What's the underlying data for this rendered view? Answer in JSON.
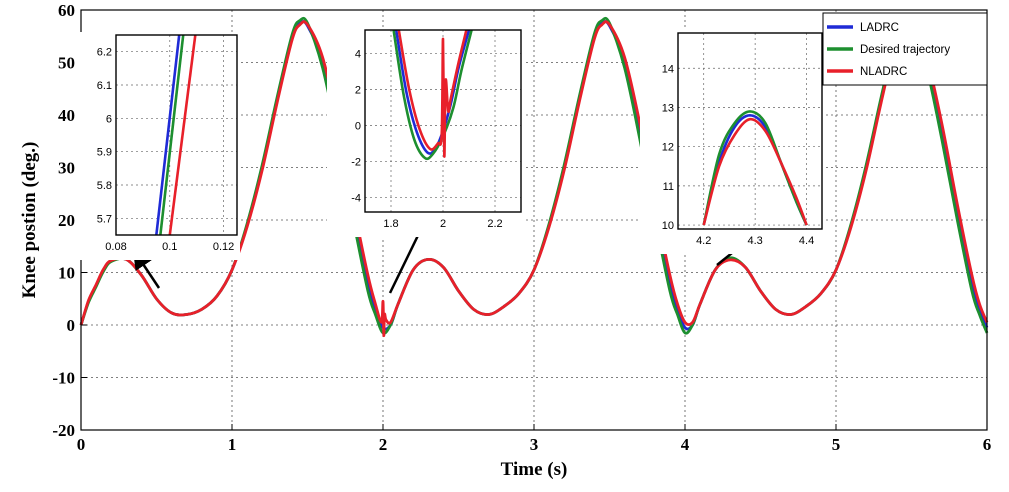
{
  "chart_data": {
    "type": "line",
    "title": "",
    "xlabel": "Time (s)",
    "ylabel": "Knee postion (deg.)",
    "xlim": [
      0,
      6
    ],
    "ylim": [
      -20,
      60
    ],
    "xticks": [
      0,
      1,
      2,
      3,
      4,
      5,
      6
    ],
    "yticks": [
      -20,
      -10,
      0,
      10,
      20,
      30,
      40,
      50,
      60
    ],
    "grid": true,
    "legend_position": "top-right",
    "series": [
      {
        "name": "LADRC",
        "color": "#1f2bd6",
        "x": [
          0,
          0.05,
          0.1,
          0.15,
          0.2,
          0.3,
          0.4,
          0.5,
          0.6,
          0.7,
          0.8,
          0.9,
          1.0,
          1.1,
          1.2,
          1.3,
          1.4,
          1.45,
          1.5,
          1.6,
          1.7,
          1.8,
          1.9,
          1.95,
          2.0,
          2.05,
          2.1,
          2.2,
          2.3,
          2.4,
          2.5,
          2.6,
          2.7,
          2.8,
          2.9,
          3.0,
          3.1,
          3.2,
          3.3,
          3.4,
          3.45,
          3.5,
          3.6,
          3.7,
          3.8,
          3.9,
          3.95,
          4.0,
          4.05,
          4.1,
          4.2,
          4.3,
          4.4,
          4.5,
          4.6,
          4.7,
          4.8,
          4.9,
          5.0,
          5.1,
          5.2,
          5.3,
          5.4,
          5.45,
          5.5,
          5.6,
          5.7,
          5.8,
          5.9,
          5.95,
          6.0
        ],
        "values": [
          0,
          4.5,
          7.5,
          10.5,
          12.2,
          12.5,
          9.5,
          5,
          2.3,
          2,
          3,
          5.5,
          10.5,
          19,
          30,
          43,
          55,
          57.5,
          57,
          50,
          37,
          22,
          8,
          3,
          -0.5,
          0,
          4,
          10.5,
          12.5,
          11,
          6.5,
          3,
          2,
          3.5,
          6,
          10.5,
          19,
          30,
          43,
          55,
          57.5,
          57,
          50,
          37,
          22,
          8,
          3,
          -0.5,
          0,
          4,
          10.5,
          12.6,
          11,
          6.5,
          3,
          2,
          3.5,
          6,
          10.5,
          19,
          30,
          43,
          55,
          57.5,
          57,
          50,
          37,
          22,
          8,
          3,
          -0.5
        ]
      },
      {
        "name": "Desired trajectory",
        "color": "#1d8f2f",
        "x": [
          0,
          0.05,
          0.1,
          0.15,
          0.2,
          0.3,
          0.4,
          0.5,
          0.6,
          0.7,
          0.8,
          0.9,
          1.0,
          1.1,
          1.2,
          1.3,
          1.4,
          1.45,
          1.5,
          1.6,
          1.7,
          1.8,
          1.9,
          1.95,
          2.0,
          2.05,
          2.1,
          2.2,
          2.3,
          2.4,
          2.5,
          2.6,
          2.7,
          2.8,
          2.9,
          3.0,
          3.1,
          3.2,
          3.3,
          3.4,
          3.45,
          3.5,
          3.6,
          3.7,
          3.8,
          3.9,
          3.95,
          4.0,
          4.05,
          4.1,
          4.2,
          4.3,
          4.4,
          4.5,
          4.6,
          4.7,
          4.8,
          4.9,
          5.0,
          5.1,
          5.2,
          5.3,
          5.4,
          5.45,
          5.5,
          5.6,
          5.7,
          5.8,
          5.9,
          5.95,
          6.0
        ],
        "values": [
          0,
          4.3,
          7.3,
          10.3,
          12.1,
          12.5,
          9.5,
          5,
          2.3,
          2,
          3,
          5.5,
          10.5,
          19.3,
          30.5,
          43.5,
          55.5,
          58,
          57.5,
          49,
          35.5,
          20.5,
          6.5,
          2,
          -1.5,
          0,
          4,
          10.5,
          12.5,
          11,
          6.5,
          3,
          2,
          3.5,
          6,
          10.5,
          19.3,
          30.5,
          43.5,
          55.5,
          58,
          57.5,
          49,
          35.5,
          20.5,
          6.5,
          2,
          -1.5,
          0,
          4,
          10.5,
          12.8,
          11,
          6.5,
          3,
          2,
          3.5,
          6,
          10.5,
          19.3,
          30.5,
          43.5,
          55.5,
          58,
          57.5,
          49,
          35.5,
          20.5,
          6.5,
          2,
          -1.5
        ]
      },
      {
        "name": "NLADRC",
        "color": "#e8202a",
        "x": [
          0,
          0.05,
          0.1,
          0.15,
          0.2,
          0.3,
          0.4,
          0.5,
          0.6,
          0.7,
          0.8,
          0.9,
          1.0,
          1.1,
          1.2,
          1.3,
          1.4,
          1.45,
          1.5,
          1.6,
          1.7,
          1.8,
          1.9,
          1.95,
          1.99,
          2.0,
          2.005,
          2.01,
          2.02,
          2.05,
          2.1,
          2.2,
          2.3,
          2.4,
          2.5,
          2.6,
          2.7,
          2.8,
          2.9,
          3.0,
          3.1,
          3.2,
          3.3,
          3.4,
          3.45,
          3.5,
          3.6,
          3.7,
          3.8,
          3.9,
          3.95,
          4.0,
          4.05,
          4.1,
          4.2,
          4.3,
          4.4,
          4.5,
          4.6,
          4.7,
          4.8,
          4.9,
          5.0,
          5.1,
          5.2,
          5.3,
          5.4,
          5.45,
          5.5,
          5.6,
          5.7,
          5.8,
          5.9,
          5.95,
          6.0
        ],
        "values": [
          0,
          4.7,
          7.7,
          10.7,
          12.3,
          12.5,
          9.5,
          5,
          2.3,
          2,
          3,
          5.5,
          10.5,
          18.7,
          29.5,
          42.5,
          54.5,
          57.2,
          57.2,
          51,
          38.5,
          23.5,
          9.5,
          4,
          0.5,
          4.5,
          -2,
          2,
          1,
          0.5,
          4,
          10.5,
          12.5,
          11,
          6.5,
          3,
          2,
          3.5,
          6,
          10.5,
          18.7,
          29.5,
          42.5,
          54.5,
          57.2,
          57.2,
          51,
          38.5,
          23.5,
          9.5,
          4,
          0.5,
          0.5,
          4,
          10.5,
          12.4,
          11,
          6.5,
          3,
          2,
          3.5,
          6,
          10.5,
          18.7,
          29.5,
          42.5,
          54.5,
          57.2,
          57.2,
          51,
          38.5,
          23.5,
          9.5,
          4,
          0.5
        ]
      }
    ],
    "insets": [
      {
        "xlim": [
          0.08,
          0.125
        ],
        "ylim": [
          5.65,
          6.25
        ],
        "xticks": [
          0.08,
          0.1,
          0.12
        ],
        "xticklabels": [
          "0.08",
          "0.1",
          "0.12"
        ],
        "yticks": [
          5.7,
          5.8,
          5.9,
          6,
          6.1,
          6.2
        ],
        "yticklabels": [
          "5.7",
          "5.8",
          "5.9",
          "6",
          "6.1",
          "6.2"
        ],
        "series": [
          {
            "name": "LADRC",
            "x": [
              0.095,
              0.1035
            ],
            "values": [
              5.65,
              6.25
            ]
          },
          {
            "name": "Desired trajectory",
            "x": [
              0.0965,
              0.105
            ],
            "values": [
              5.65,
              6.25
            ]
          },
          {
            "name": "NLADRC",
            "x": [
              0.1,
              0.1095
            ],
            "values": [
              5.65,
              6.25
            ]
          }
        ]
      },
      {
        "xlim": [
          1.7,
          2.3
        ],
        "ylim": [
          -4.8,
          5.3
        ],
        "xticks": [
          1.8,
          2,
          2.2
        ],
        "xticklabels": [
          "1.8",
          "2",
          "2.2"
        ],
        "yticks": [
          -4,
          -2,
          0,
          2,
          4
        ],
        "yticklabels": [
          "-4",
          "-2",
          "0",
          "2",
          "4"
        ],
        "series": [
          {
            "name": "LADRC",
            "x": [
              1.82,
              1.86,
              1.9,
              1.94,
              1.97,
              2.0,
              2.03,
              2.06,
              2.1
            ],
            "values": [
              5.3,
              1.8,
              -0.4,
              -1.5,
              -1.3,
              -0.3,
              1.2,
              3.2,
              5.3
            ]
          },
          {
            "name": "Desired trajectory",
            "x": [
              1.81,
              1.85,
              1.89,
              1.93,
              1.96,
              2.0,
              2.04,
              2.07,
              2.11
            ],
            "values": [
              5.3,
              1.6,
              -0.8,
              -1.8,
              -1.6,
              -0.6,
              1.0,
              3.0,
              5.3
            ]
          },
          {
            "name": "NLADRC",
            "x": [
              1.83,
              1.87,
              1.91,
              1.95,
              1.98,
              1.995,
              2.0,
              2.005,
              2.01,
              2.02,
              2.03,
              2.06,
              2.09
            ],
            "values": [
              5.3,
              2.0,
              -0.2,
              -1.3,
              -1.0,
              -0.5,
              4.8,
              -1.7,
              2.5,
              0.8,
              1.5,
              3.5,
              5.3
            ]
          }
        ]
      },
      {
        "xlim": [
          4.15,
          4.43
        ],
        "ylim": [
          9.9,
          14.9
        ],
        "xticks": [
          4.2,
          4.3,
          4.4
        ],
        "xticklabels": [
          "4.2",
          "4.3",
          "4.4"
        ],
        "yticks": [
          10,
          11,
          12,
          13,
          14
        ],
        "yticklabels": [
          "10",
          "11",
          "12",
          "13",
          "14"
        ],
        "series": [
          {
            "name": "LADRC",
            "x": [
              4.2,
              4.23,
              4.26,
              4.29,
              4.32,
              4.35,
              4.38,
              4.4
            ],
            "values": [
              10.0,
              11.6,
              12.5,
              12.8,
              12.5,
              11.6,
              10.6,
              10.0
            ]
          },
          {
            "name": "Desired trajectory",
            "x": [
              4.2,
              4.23,
              4.26,
              4.29,
              4.32,
              4.35,
              4.38,
              4.4
            ],
            "values": [
              10.0,
              11.8,
              12.6,
              12.9,
              12.6,
              11.6,
              10.6,
              10.0
            ]
          },
          {
            "name": "NLADRC",
            "x": [
              4.2,
              4.23,
              4.26,
              4.29,
              4.32,
              4.35,
              4.38,
              4.4
            ],
            "values": [
              10.0,
              11.5,
              12.3,
              12.7,
              12.4,
              11.6,
              10.7,
              10.0
            ]
          }
        ]
      }
    ]
  }
}
